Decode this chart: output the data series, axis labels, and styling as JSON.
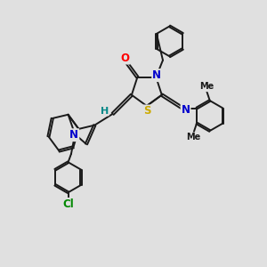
{
  "bg_color": "#e0e0e0",
  "bond_color": "#1a1a1a",
  "line_width": 1.4,
  "atom_colors": {
    "O": "#ff0000",
    "N": "#0000cc",
    "S": "#ccaa00",
    "Cl": "#008800",
    "H": "#008888",
    "C": "#1a1a1a"
  },
  "figsize": [
    3.0,
    3.0
  ],
  "dpi": 100
}
